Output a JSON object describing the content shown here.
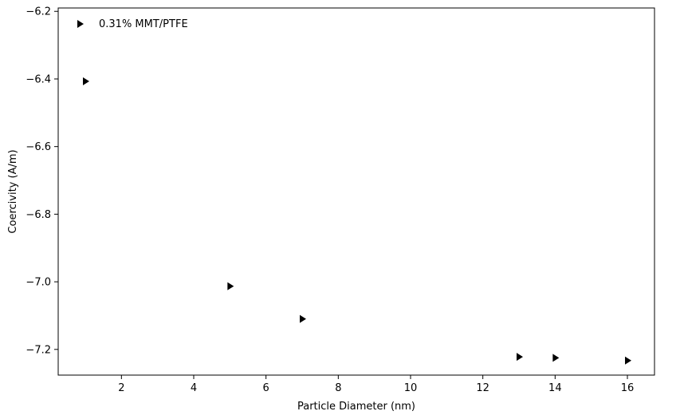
{
  "chart_data": {
    "type": "scatter",
    "title": "",
    "xlabel": "Particle Diameter (nm)",
    "ylabel": "Coercivity (A/m)",
    "xlim": [
      0.25,
      16.75
    ],
    "ylim": [
      -7.276,
      -6.19
    ],
    "x_ticks": [
      2,
      4,
      6,
      8,
      10,
      12,
      14,
      16
    ],
    "x_tick_labels": [
      "2",
      "4",
      "6",
      "8",
      "10",
      "12",
      "14",
      "16"
    ],
    "y_ticks": [
      -6.2,
      -6.4,
      -6.6,
      -6.8,
      -7.0,
      -7.2
    ],
    "y_tick_labels": [
      "−6.2",
      "−6.4",
      "−6.6",
      "−6.8",
      "−7.0",
      "−7.2"
    ],
    "grid": false,
    "legend_position": "top-left",
    "series": [
      {
        "name": "0.31% MMT/PTFE",
        "marker": "triangle-right",
        "color": "#000000",
        "x": [
          1,
          5,
          7,
          13,
          14,
          16
        ],
        "y": [
          -6.407,
          -7.013,
          -7.11,
          -7.222,
          -7.225,
          -7.233
        ]
      }
    ]
  }
}
